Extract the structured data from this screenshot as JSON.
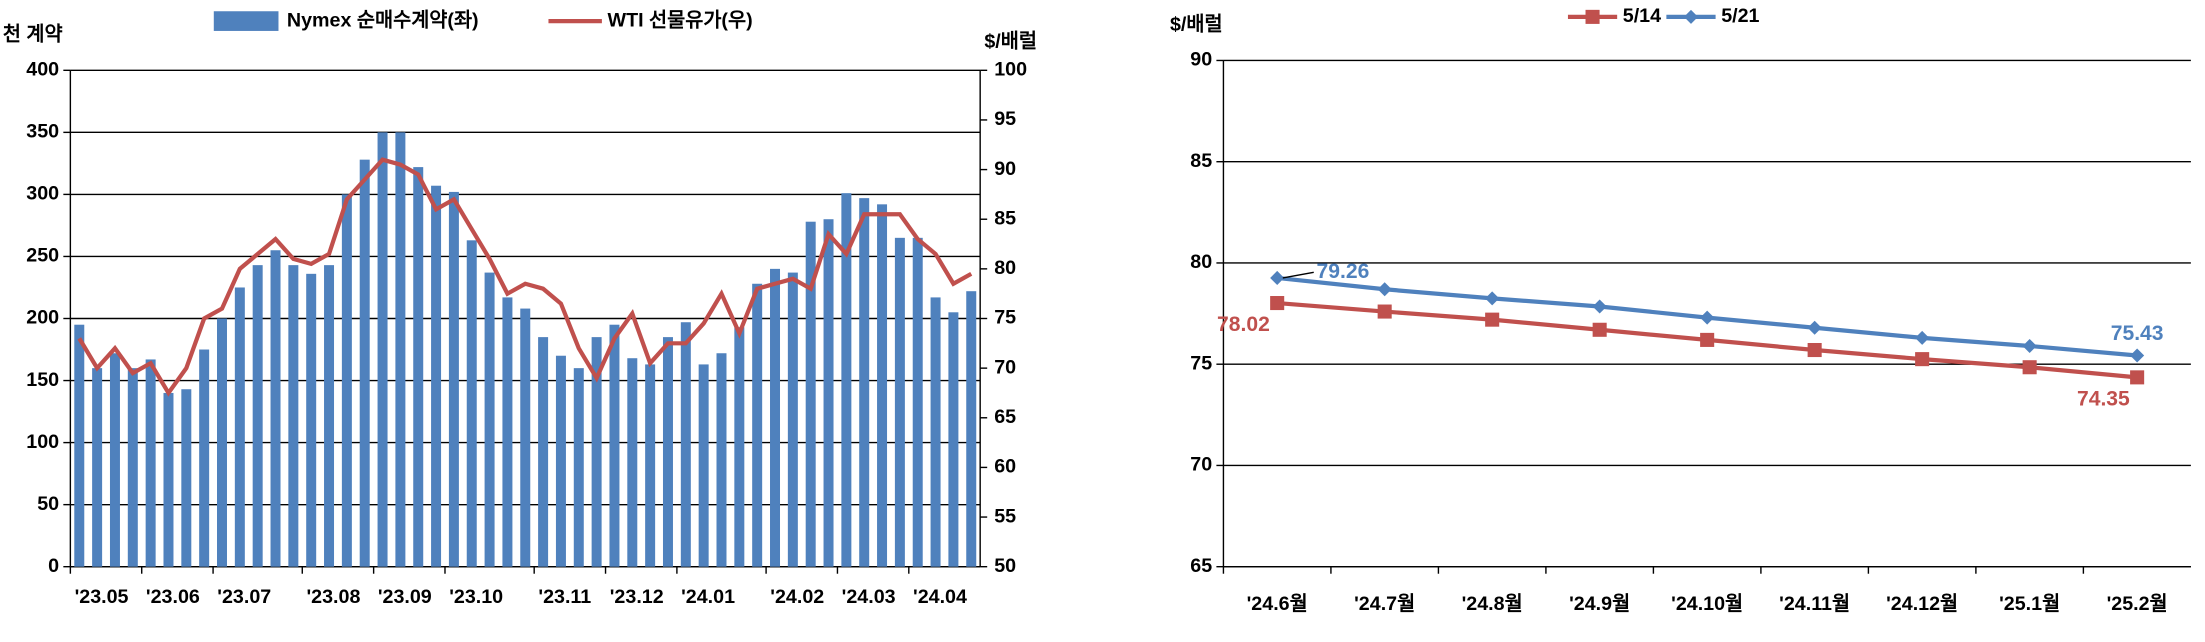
{
  "chart_data": [
    {
      "type": "combo",
      "y_label": "천 계약",
      "y2_label": "$/배럴",
      "categories": [
        "'23.05",
        null,
        null,
        null,
        "'23.06",
        null,
        null,
        null,
        "'23.07",
        null,
        null,
        null,
        null,
        "'23.08",
        null,
        null,
        null,
        "'23.09",
        null,
        null,
        null,
        "'23.10",
        null,
        null,
        null,
        null,
        "'23.11",
        null,
        null,
        null,
        "'23.12",
        null,
        null,
        null,
        "'24.01",
        null,
        null,
        null,
        null,
        "'24.02",
        null,
        null,
        null,
        "'24.03",
        null,
        null,
        null,
        "'24.04",
        null,
        null,
        null
      ],
      "series": [
        {
          "name": "Nymex 순매수계약(좌)",
          "type": "bar",
          "color": "#4f81bd",
          "values": [
            195,
            160,
            172,
            160,
            167,
            140,
            143,
            175,
            200,
            225,
            243,
            255,
            243,
            236,
            243,
            300,
            328,
            350,
            350,
            322,
            307,
            302,
            263,
            237,
            217,
            208,
            185,
            170,
            160,
            185,
            195,
            168,
            163,
            185,
            197,
            163,
            172,
            193,
            228,
            240,
            237,
            278,
            280,
            301,
            297,
            292,
            265,
            265,
            217,
            205,
            222
          ]
        },
        {
          "name": "WTI 선물유가(우)",
          "type": "line",
          "axis": "y2",
          "color": "#c0504d",
          "values": [
            73,
            70,
            72,
            69.5,
            70.5,
            67.5,
            70,
            75,
            76,
            80,
            81.5,
            83,
            81,
            80.5,
            81.5,
            87,
            89,
            91,
            90.5,
            89.5,
            86,
            87,
            84,
            81,
            77.5,
            78.5,
            78,
            76.5,
            72,
            69,
            73,
            75.5,
            70.5,
            72.5,
            72.5,
            74.5,
            77.5,
            73.5,
            78,
            78.5,
            79,
            78,
            83.5,
            81.5,
            85.5,
            85.5,
            85.5,
            83,
            81.5,
            78.5,
            79.5
          ]
        }
      ],
      "ylim": [
        0,
        400
      ],
      "yticks": [
        0,
        50,
        100,
        150,
        200,
        250,
        300,
        350,
        400
      ],
      "y2lim": [
        50,
        100
      ],
      "y2ticks": [
        50,
        55,
        60,
        65,
        70,
        75,
        80,
        85,
        90,
        95,
        100
      ],
      "grid": true,
      "legend": "top"
    },
    {
      "type": "line",
      "y_label": "$/배럴",
      "categories": [
        "'24.6월",
        "'24.7월",
        "'24.8월",
        "'24.9월",
        "'24.10월",
        "'24.11월",
        "'24.12월",
        "'25.1월",
        "'25.2월"
      ],
      "series": [
        {
          "name": "5/14",
          "color": "#c0504d",
          "marker": "square",
          "values": [
            78.02,
            77.6,
            77.2,
            76.7,
            76.2,
            75.7,
            75.25,
            74.85,
            74.35
          ],
          "value_labels": [
            "78.02",
            null,
            null,
            null,
            null,
            null,
            null,
            null,
            "74.35"
          ]
        },
        {
          "name": "5/21",
          "color": "#4f81bd",
          "marker": "diamond",
          "values": [
            79.26,
            78.7,
            78.25,
            77.85,
            77.3,
            76.8,
            76.3,
            75.9,
            75.43
          ],
          "value_labels": [
            "79.26",
            null,
            null,
            null,
            null,
            null,
            null,
            null,
            "75.43"
          ]
        }
      ],
      "ylim": [
        65,
        90
      ],
      "yticks": [
        65,
        70,
        75,
        80,
        85,
        90
      ],
      "grid": true,
      "legend": "top"
    }
  ]
}
